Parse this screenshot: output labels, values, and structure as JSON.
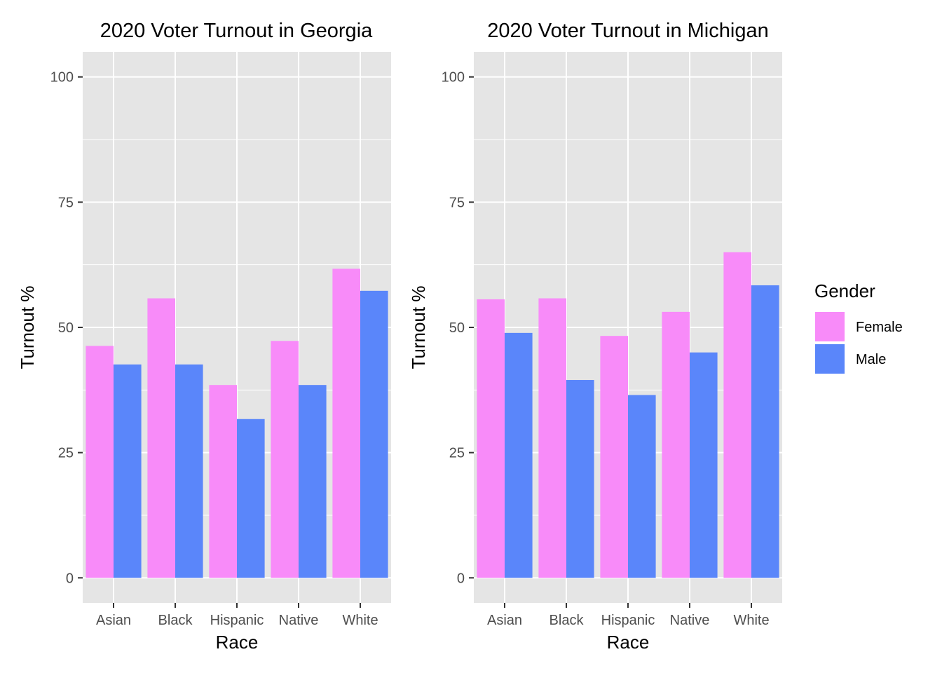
{
  "chart_data": [
    {
      "type": "bar",
      "title": "2020 Voter Turnout in Georgia",
      "xlabel": "Race",
      "ylabel": "Turnout %",
      "categories": [
        "Asian",
        "Black",
        "Hispanic",
        "Native",
        "White"
      ],
      "series": [
        {
          "name": "Female",
          "values": [
            46.3,
            55.8,
            38.5,
            47.3,
            61.7
          ]
        },
        {
          "name": "Male",
          "values": [
            42.6,
            42.6,
            31.7,
            38.5,
            57.3
          ]
        }
      ],
      "ylim": [
        -5,
        105
      ],
      "yticks": [
        0,
        25,
        50,
        75,
        100
      ],
      "grid": true
    },
    {
      "type": "bar",
      "title": "2020 Voter Turnout in Michigan",
      "xlabel": "Race",
      "ylabel": "Turnout %",
      "categories": [
        "Asian",
        "Black",
        "Hispanic",
        "Native",
        "White"
      ],
      "series": [
        {
          "name": "Female",
          "values": [
            55.6,
            55.8,
            48.3,
            53.1,
            65.0
          ]
        },
        {
          "name": "Male",
          "values": [
            48.9,
            39.5,
            36.5,
            45.0,
            58.4
          ]
        }
      ],
      "ylim": [
        -5,
        105
      ],
      "yticks": [
        0,
        25,
        50,
        75,
        100
      ],
      "grid": true
    }
  ],
  "legend": {
    "title": "Gender",
    "placement": "right",
    "items": [
      {
        "label": "Female",
        "color": "#f88bf9"
      },
      {
        "label": "Male",
        "color": "#5a86fa"
      }
    ]
  },
  "colors": {
    "panel_background": "#e5e5e5",
    "grid": "#ffffff",
    "tick": "#333333"
  }
}
